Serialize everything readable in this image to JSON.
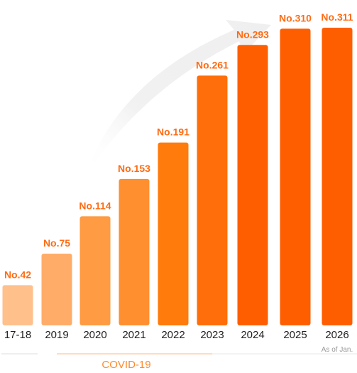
{
  "chart_data": {
    "type": "bar",
    "categories": [
      "17-18",
      "2019",
      "2020",
      "2021",
      "2022",
      "2023",
      "2024",
      "2025",
      "2026"
    ],
    "values": [
      42,
      75,
      114,
      153,
      191,
      261,
      293,
      310,
      311
    ],
    "data_labels": [
      "No.42",
      "No.75",
      "No.114",
      "No.153",
      "No.191",
      "No.261",
      "No.293",
      "No.310",
      "No.311"
    ],
    "category_sublabels": [
      "",
      "",
      "",
      "",
      "",
      "",
      "",
      "",
      "As of Jan."
    ],
    "title": "",
    "xlabel": "",
    "ylabel": "",
    "ylim": [
      0,
      311
    ],
    "grid": false,
    "legend": "none",
    "annotation": {
      "label": "COVID-19",
      "start_category": "2019",
      "end_category": "2023"
    },
    "colors": [
      "#ffc08c",
      "#ffac69",
      "#ff9b42",
      "#ff8f2f",
      "#ff7b0b",
      "#ff6e0a",
      "#ff5e00",
      "#ff5e00",
      "#ff5e00"
    ],
    "label_color": "#ff6b12",
    "arrow_color": "#efefef"
  }
}
